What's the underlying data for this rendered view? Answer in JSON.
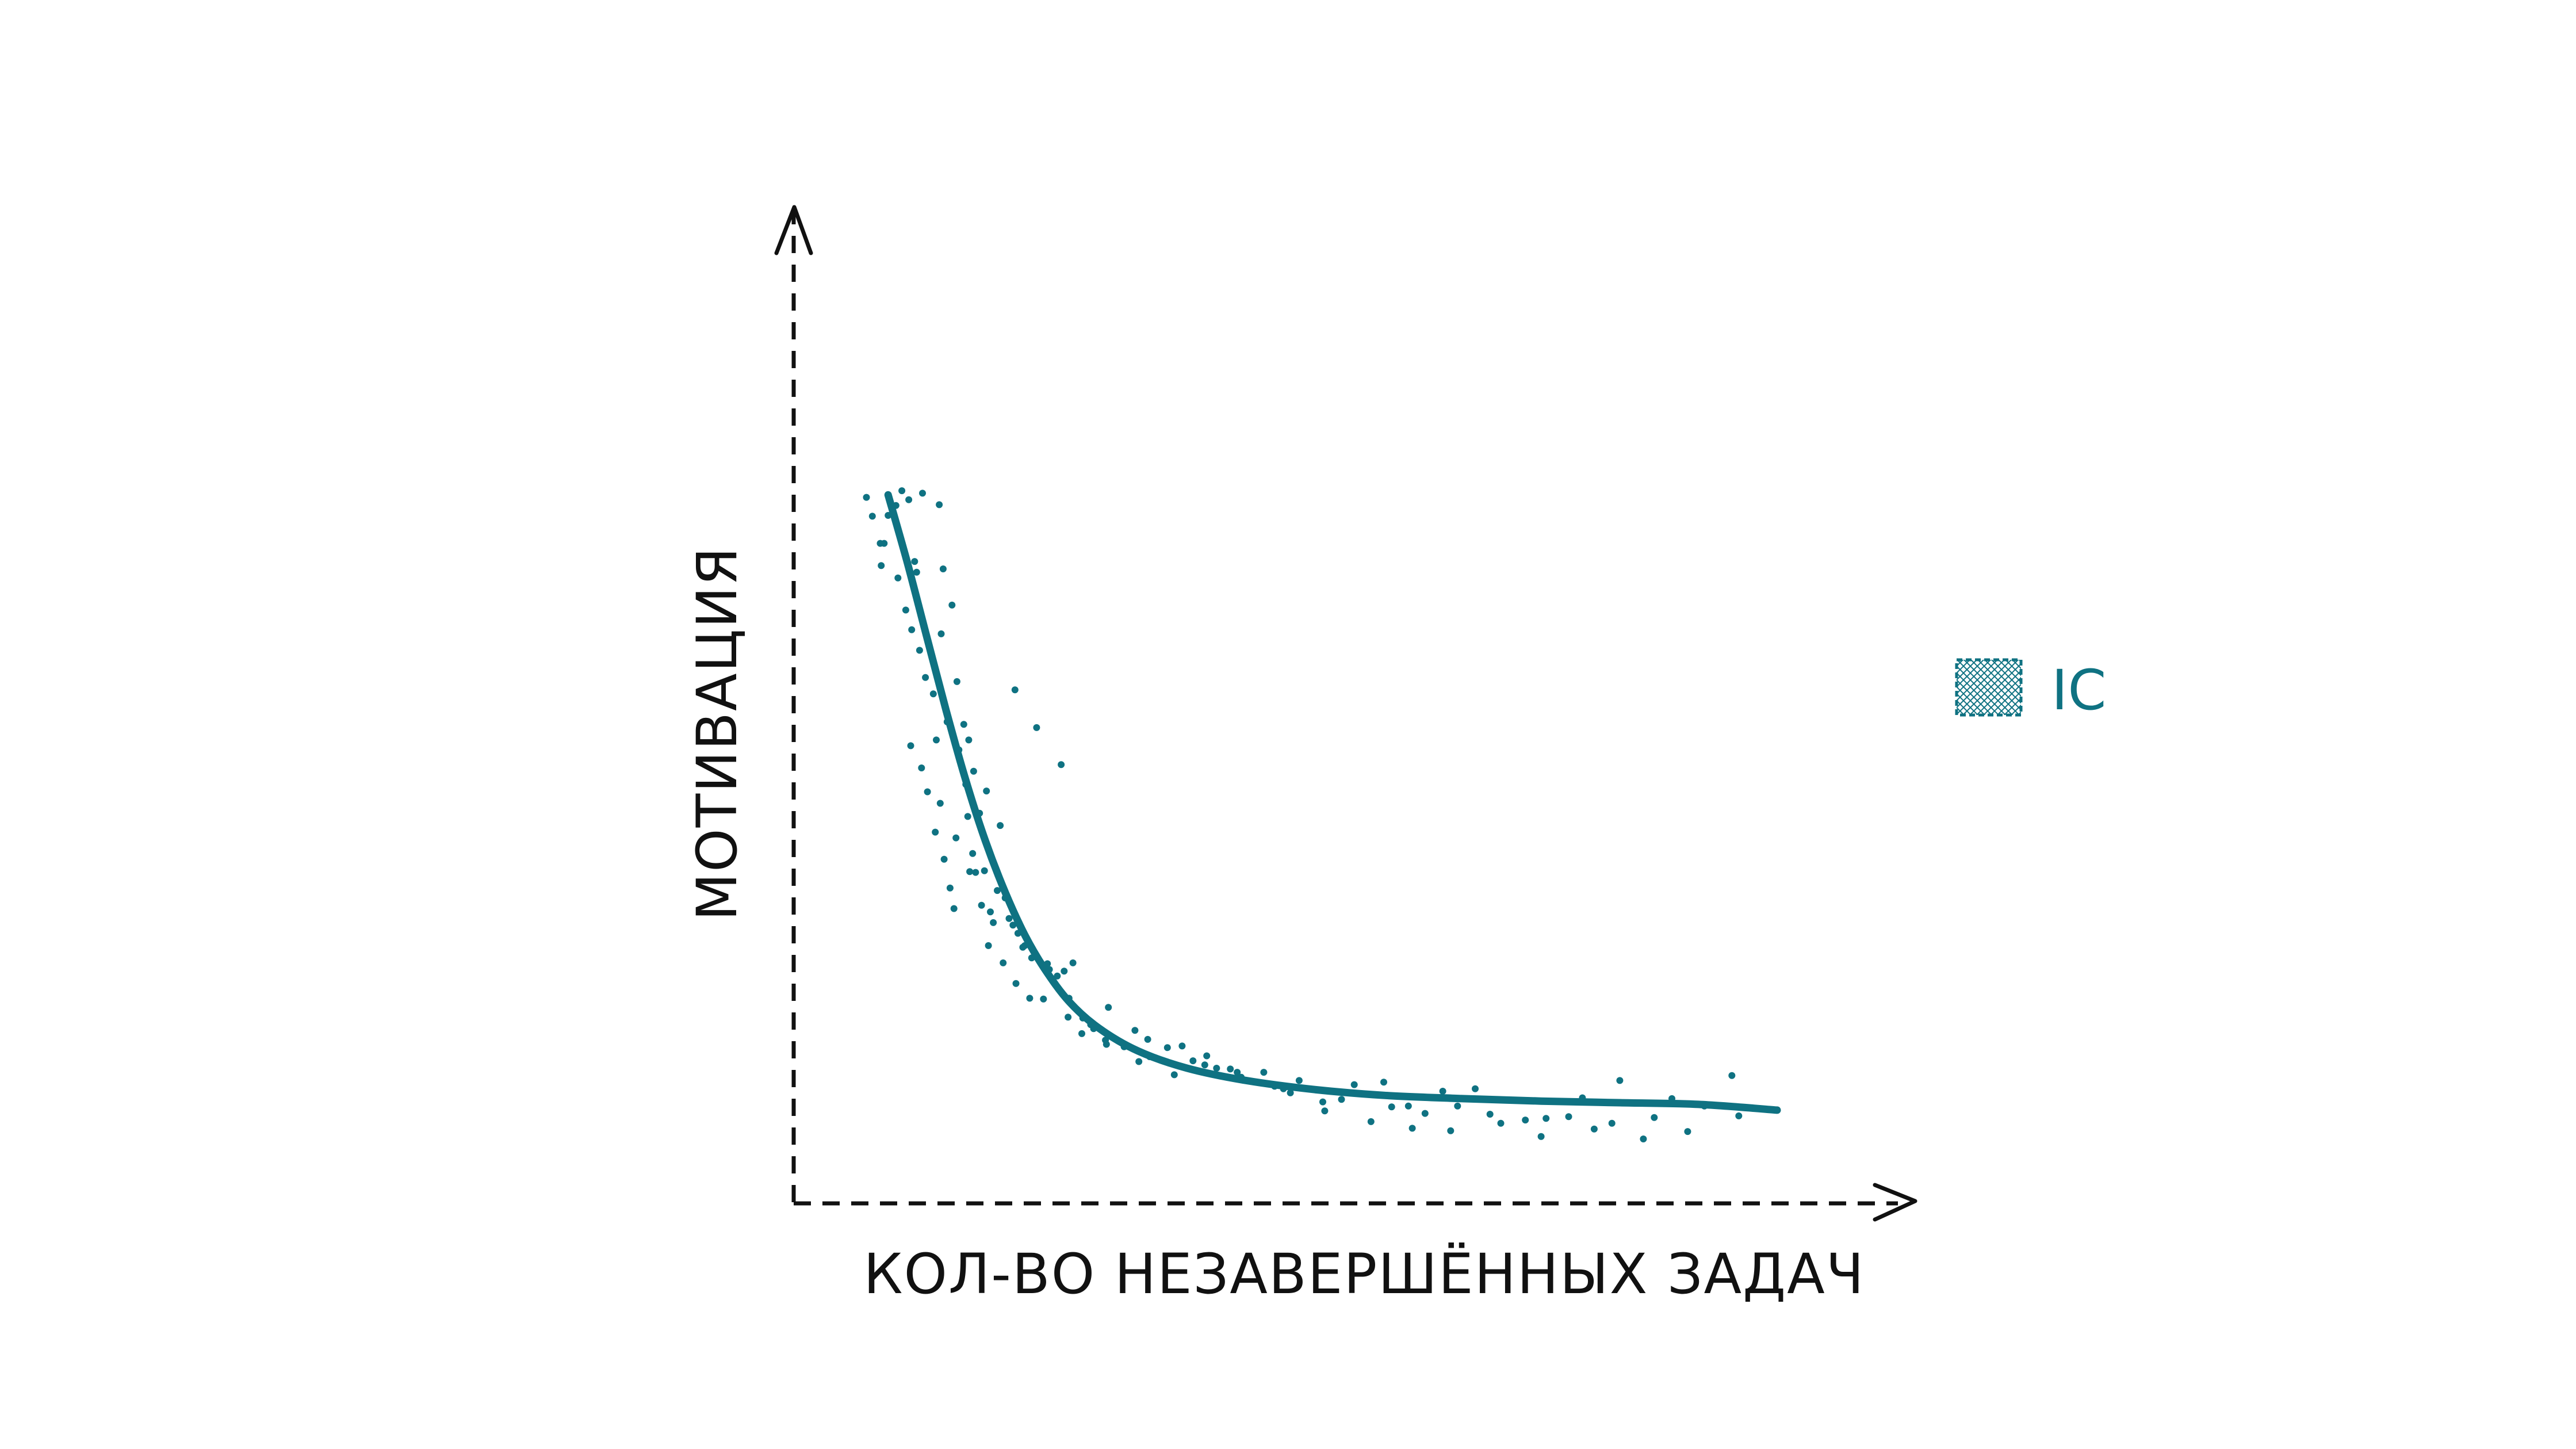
{
  "chart_data": {
    "type": "scatter",
    "title": "",
    "xlabel": "КОЛ-ВО НЕЗАВЕРШЁННЫХ ЗАДАЧ",
    "ylabel": "МОТИВАЦИЯ",
    "xlim": [
      0,
      100
    ],
    "ylim": [
      0,
      100
    ],
    "grid": false,
    "legend": {
      "position": "right",
      "entries": [
        {
          "label": "IC",
          "color": "#0f7282"
        }
      ]
    },
    "colors": {
      "series": "#0f7282",
      "axis": "#111111"
    },
    "series": [
      {
        "name": "IC",
        "kind": "points",
        "x": [
          7.4,
          8.0,
          8.8,
          9.2,
          9.6,
          10.4,
          11.0,
          11.7,
          12.3,
          13.1,
          12.5,
          14.8,
          15.2,
          15.0,
          16.1,
          16.6,
          17.3,
          17.8,
          18.3,
          22.5,
          8.9,
          10.6,
          11.4,
          12.0,
          12.8,
          13.4,
          14.2,
          14.5,
          15.6,
          16.8,
          17.5,
          18.9,
          19.6,
          21.0,
          24.7,
          27.2,
          11.9,
          13.0,
          13.6,
          14.4,
          15.3,
          15.9,
          16.3,
          17.9,
          18.5,
          19.1,
          20.0,
          20.3,
          21.9,
          22.8,
          23.5,
          14.9,
          16.5,
          17.7,
          18.2,
          19.4,
          20.7,
          21.5,
          22.3,
          23.3,
          24.2,
          26.0,
          26.8,
          27.5,
          28.4,
          19.8,
          21.3,
          22.6,
          24.0,
          25.4,
          27.9,
          29.3,
          30.5,
          33.6,
          36.2,
          39.5,
          42.0,
          25.8,
          28.0,
          30.2,
          31.8,
          35.1,
          38.7,
          43.0,
          45.5,
          48.9,
          51.4,
          55.7,
          60.0,
          62.5,
          66.0,
          69.3,
          73.1,
          76.5,
          80.2,
          84.0,
          89.3,
          95.4,
          29.4,
          32.0,
          34.7,
          38.0,
          41.8,
          45.1,
          47.8,
          50.5,
          53.8,
          57.0,
          60.8,
          64.2,
          67.5,
          70.8,
          74.4,
          78.8,
          83.2,
          87.5,
          92.6,
          96.1,
          31.7,
          36.0,
          40.6,
          44.4,
          49.8,
          54.0,
          58.7,
          62.9,
          66.8,
          71.9,
          76.0,
          81.4,
          86.4,
          90.9
        ],
        "y": [
          81.5,
          79.2,
          75.9,
          75.9,
          79.3,
          80.5,
          82.3,
          81.2,
          73.7,
          82.0,
          72.4,
          80.6,
          72.8,
          64.9,
          68.4,
          59.1,
          53.9,
          52.0,
          48.2,
          58.1,
          73.2,
          71.7,
          67.8,
          65.4,
          62.9,
          59.6,
          57.6,
          52.0,
          54.2,
          50.8,
          46.6,
          43.1,
          45.8,
          41.6,
          53.5,
          49.0,
          51.3,
          48.6,
          45.7,
          40.8,
          37.5,
          34.0,
          31.5,
          36.0,
          35.9,
          31.9,
          31.1,
          29.8,
          30.3,
          28.5,
          27.0,
          44.3,
          40.1,
          42.7,
          38.2,
          36.1,
          33.7,
          32.8,
          29.5,
          26.8,
          25.5,
          24.1,
          23.3,
          23.9,
          24.9,
          27.0,
          24.9,
          22.4,
          20.6,
          20.5,
          18.3,
          16.3,
          16.9,
          14.7,
          13.5,
          14.8,
          13.6,
          24.8,
          20.6,
          17.4,
          15.0,
          12.9,
          11.3,
          12.1,
          11.0,
          9.9,
          10.6,
          8.3,
          10.4,
          7.5,
          9.3,
          9.6,
          8.2,
          6.0,
          8.5,
          10.6,
          8.4,
          11.2,
          18.2,
          19.5,
          16.7,
          14.6,
          12.5,
          11.6,
          11.6,
          9.1,
          8.0,
          10.1,
          7.4,
          6.6,
          7.5,
          6.5,
          5.8,
          6.2,
          5.4,
          6.1,
          7.5,
          6.3,
          15.5,
          15.6,
          13.0,
          12.0,
          9.6,
          6.9,
          5.6,
          4.8,
          4.5,
          5.4,
          3.8,
          4.7,
          3.5,
          4.4
        ]
      },
      {
        "name": "IC",
        "kind": "trend",
        "x": [
          9.6,
          11.5,
          13.5,
          15.5,
          17.5,
          19.5,
          21.5,
          23.5,
          25.5,
          28.0,
          31.0,
          35.0,
          40.0,
          46.0,
          53.0,
          60.0,
          68.0,
          76.0,
          84.0,
          92.0,
          100.0
        ],
        "y": [
          81.8,
          73.8,
          64.7,
          55.6,
          47.1,
          39.7,
          33.5,
          28.3,
          24.2,
          20.2,
          17.0,
          14.2,
          12.1,
          10.6,
          9.5,
          8.8,
          8.4,
          8.1,
          7.9,
          7.7,
          7.0
        ]
      }
    ]
  }
}
